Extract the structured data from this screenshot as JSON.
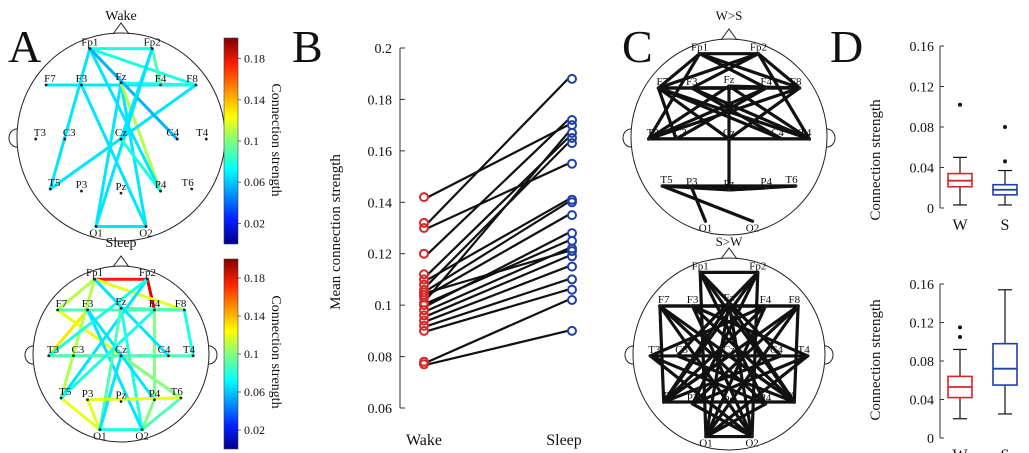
{
  "panels": {
    "a": "A",
    "b": "B",
    "c": "C",
    "d": "D"
  },
  "panelA": {
    "wake_title": "Wake",
    "sleep_title": "Sleep",
    "colorbar_label": "Connection strength",
    "colorbar_ticks": [
      "0.18",
      "0.14",
      "0.1",
      "0.06",
      "0.02"
    ],
    "colorbar_values": [
      0.18,
      0.14,
      0.1,
      0.06,
      0.02
    ],
    "colorbar_range": [
      0.0,
      0.2
    ],
    "electrodes": [
      {
        "id": "Fp1",
        "label": "Fp1"
      },
      {
        "id": "Fp2",
        "label": "Fp2"
      },
      {
        "id": "F7",
        "label": "F7"
      },
      {
        "id": "F3",
        "label": "F3"
      },
      {
        "id": "Fz",
        "label": "Fz"
      },
      {
        "id": "F4",
        "label": "F4"
      },
      {
        "id": "F8",
        "label": "F8"
      },
      {
        "id": "T3",
        "label": "T3"
      },
      {
        "id": "C3",
        "label": "C3"
      },
      {
        "id": "Cz",
        "label": "Cz"
      },
      {
        "id": "C4",
        "label": "C4"
      },
      {
        "id": "T4",
        "label": "T4"
      },
      {
        "id": "T5",
        "label": "T5"
      },
      {
        "id": "P3",
        "label": "P3"
      },
      {
        "id": "Pz",
        "label": "Pz"
      },
      {
        "id": "P4",
        "label": "P4"
      },
      {
        "id": "T6",
        "label": "T6"
      },
      {
        "id": "O1",
        "label": "O1"
      },
      {
        "id": "O2",
        "label": "O2"
      }
    ],
    "wake_edges": [
      [
        "Fp1",
        "Fp2",
        0.08
      ],
      [
        "Fp1",
        "F8",
        0.08
      ],
      [
        "Fp2",
        "F4",
        0.09
      ],
      [
        "F7",
        "F4",
        0.08
      ],
      [
        "F7",
        "F8",
        0.07
      ],
      [
        "Fz",
        "F8",
        0.08
      ],
      [
        "Fp1",
        "T5",
        0.07
      ],
      [
        "Fz",
        "O1",
        0.07
      ],
      [
        "Fz",
        "O2",
        0.07
      ],
      [
        "Fz",
        "P4",
        0.11
      ],
      [
        "Fp2",
        "O1",
        0.07
      ],
      [
        "Fp1",
        "P4",
        0.07
      ],
      [
        "F3",
        "O2",
        0.07
      ],
      [
        "Cz",
        "P4",
        0.08
      ],
      [
        "F8",
        "T5",
        0.07
      ],
      [
        "O1",
        "O2",
        0.07
      ],
      [
        "Fp1",
        "C4",
        0.06
      ],
      [
        "Fp2",
        "Cz",
        0.07
      ]
    ],
    "sleep_edges": [
      [
        "Fp1",
        "Fp2",
        0.17
      ],
      [
        "Fp2",
        "F4",
        0.18
      ],
      [
        "Fp1",
        "F8",
        0.12
      ],
      [
        "F7",
        "F8",
        0.1
      ],
      [
        "F7",
        "Fp1",
        0.11
      ],
      [
        "Fz",
        "F8",
        0.09
      ],
      [
        "F3",
        "T3",
        0.13
      ],
      [
        "T3",
        "C4",
        0.1
      ],
      [
        "F7",
        "T6",
        0.12
      ],
      [
        "Fp1",
        "T5",
        0.11
      ],
      [
        "T5",
        "O1",
        0.12
      ],
      [
        "P3",
        "O1",
        0.12
      ],
      [
        "O1",
        "O2",
        0.08
      ],
      [
        "O2",
        "P4",
        0.1
      ],
      [
        "T6",
        "O2",
        0.09
      ],
      [
        "F4",
        "P4",
        0.1
      ],
      [
        "Fp2",
        "T5",
        0.07
      ],
      [
        "Fz",
        "O2",
        0.08
      ],
      [
        "F3",
        "O2",
        0.07
      ],
      [
        "Fz",
        "O1",
        0.09
      ],
      [
        "Cz",
        "T6",
        0.1
      ],
      [
        "F8",
        "T4",
        0.08
      ],
      [
        "T3",
        "T4",
        0.09
      ],
      [
        "F7",
        "F4",
        0.09
      ],
      [
        "Fp2",
        "T3",
        0.08
      ],
      [
        "F3",
        "P4",
        0.07
      ],
      [
        "Fp1",
        "C4",
        0.07
      ],
      [
        "F4",
        "T5",
        0.08
      ],
      [
        "Cz",
        "O1",
        0.07
      ],
      [
        "P3",
        "T6",
        0.12
      ]
    ]
  },
  "chart_data": {
    "type": "line",
    "ylabel": "Mean connection strength",
    "categories": [
      "Wake",
      "Sleep"
    ],
    "ylim": [
      0.06,
      0.2
    ],
    "yticks": [
      "0.06",
      "0.08",
      "0.1",
      "0.12",
      "0.14",
      "0.16",
      "0.18",
      "0.2"
    ],
    "ytick_values": [
      0.06,
      0.08,
      0.1,
      0.12,
      0.14,
      0.16,
      0.18,
      0.2
    ],
    "wake_color": "#d62728",
    "sleep_color": "#1f3fa8",
    "pairs": [
      [
        0.142,
        0.17
      ],
      [
        0.132,
        0.188
      ],
      [
        0.13,
        0.155
      ],
      [
        0.12,
        0.172
      ],
      [
        0.112,
        0.165
      ],
      [
        0.11,
        0.141
      ],
      [
        0.108,
        0.163
      ],
      [
        0.106,
        0.14
      ],
      [
        0.104,
        0.135
      ],
      [
        0.103,
        0.167
      ],
      [
        0.101,
        0.125
      ],
      [
        0.098,
        0.122
      ],
      [
        0.096,
        0.119
      ],
      [
        0.094,
        0.115
      ],
      [
        0.092,
        0.11
      ],
      [
        0.09,
        0.106
      ],
      [
        0.078,
        0.102
      ],
      [
        0.077,
        0.09
      ],
      [
        0.1,
        0.128
      ],
      [
        0.105,
        0.121
      ]
    ]
  },
  "panelC": {
    "top_title": "W>S",
    "bottom_title": "S>W",
    "top_edges": [
      [
        "F7",
        "F8"
      ],
      [
        "F7",
        "F4"
      ],
      [
        "F3",
        "F8"
      ],
      [
        "F3",
        "F4"
      ],
      [
        "Fz",
        "F8"
      ],
      [
        "Fp1",
        "F4"
      ],
      [
        "Fp1",
        "F8"
      ],
      [
        "Fp2",
        "F7"
      ],
      [
        "Fp2",
        "F3"
      ],
      [
        "Fp1",
        "F7"
      ],
      [
        "Fp2",
        "F8"
      ],
      [
        "F7",
        "T4"
      ],
      [
        "T3",
        "F8"
      ],
      [
        "T3",
        "T4"
      ],
      [
        "C3",
        "T4"
      ],
      [
        "T3",
        "C4"
      ],
      [
        "F3",
        "T4"
      ],
      [
        "T3",
        "F4"
      ],
      [
        "F7",
        "C4"
      ],
      [
        "Fz",
        "T4"
      ],
      [
        "T3",
        "Fz"
      ],
      [
        "T5",
        "T6"
      ],
      [
        "T5",
        "P4"
      ],
      [
        "P3",
        "T6"
      ],
      [
        "T5",
        "O2"
      ],
      [
        "P3",
        "O1"
      ],
      [
        "Pz",
        "T6"
      ],
      [
        "Fp1",
        "T3"
      ],
      [
        "Fp2",
        "T4"
      ],
      [
        "Fz",
        "Pz"
      ],
      [
        "F7",
        "Cz"
      ],
      [
        "Cz",
        "F8"
      ],
      [
        "Fp1",
        "Fp2"
      ],
      [
        "F3",
        "C4"
      ],
      [
        "C3",
        "F4"
      ],
      [
        "T3",
        "Cz"
      ],
      [
        "F7",
        "C3"
      ],
      [
        "Cz",
        "T4"
      ],
      [
        "T5",
        "Pz"
      ],
      [
        "Pz",
        "P4"
      ]
    ],
    "bottom_edges": [
      [
        "Fp1",
        "Fp2"
      ],
      [
        "Fp1",
        "T6"
      ],
      [
        "Fp2",
        "T5"
      ],
      [
        "F7",
        "T6"
      ],
      [
        "F8",
        "T5"
      ],
      [
        "F7",
        "O2"
      ],
      [
        "F8",
        "O1"
      ],
      [
        "F3",
        "O2"
      ],
      [
        "F4",
        "O1"
      ],
      [
        "T3",
        "T4"
      ],
      [
        "T3",
        "P4"
      ],
      [
        "T4",
        "P3"
      ],
      [
        "Fp1",
        "O1"
      ],
      [
        "Fp2",
        "O2"
      ],
      [
        "F7",
        "T5"
      ],
      [
        "F8",
        "T6"
      ],
      [
        "Fz",
        "O1"
      ],
      [
        "Fz",
        "O2"
      ],
      [
        "F3",
        "T6"
      ],
      [
        "F4",
        "T5"
      ],
      [
        "T3",
        "O2"
      ],
      [
        "T4",
        "O1"
      ],
      [
        "C3",
        "T6"
      ],
      [
        "C4",
        "T5"
      ],
      [
        "Fp1",
        "P4"
      ],
      [
        "Fp2",
        "P3"
      ],
      [
        "F7",
        "F4"
      ],
      [
        "F3",
        "F8"
      ],
      [
        "T3",
        "F4"
      ],
      [
        "T4",
        "F3"
      ],
      [
        "Cz",
        "T5"
      ],
      [
        "Cz",
        "T6"
      ],
      [
        "P3",
        "O2"
      ],
      [
        "P4",
        "O1"
      ],
      [
        "Fp1",
        "C4"
      ],
      [
        "Fp2",
        "C3"
      ],
      [
        "F7",
        "P4"
      ],
      [
        "F8",
        "P3"
      ],
      [
        "T5",
        "T6"
      ],
      [
        "C3",
        "C4"
      ],
      [
        "Fz",
        "T5"
      ],
      [
        "Fz",
        "T6"
      ],
      [
        "F7",
        "F8"
      ],
      [
        "O1",
        "O2"
      ]
    ]
  },
  "panelD": {
    "ylabel": "Connection strength",
    "categories": [
      "W",
      "S"
    ],
    "top": {
      "ylim": [
        0,
        0.16
      ],
      "yticks": [
        "0",
        "0.04",
        "0.08",
        "0.12",
        "0.16"
      ],
      "ytick_values": [
        0,
        0.04,
        0.08,
        0.12,
        0.16
      ],
      "boxes": [
        {
          "name": "W",
          "color": "#d62728",
          "min": 0.003,
          "q1": 0.021,
          "median": 0.027,
          "q3": 0.034,
          "max": 0.05,
          "outliers": [
            0.102
          ]
        },
        {
          "name": "S",
          "color": "#1f3fa8",
          "min": 0.003,
          "q1": 0.013,
          "median": 0.018,
          "q3": 0.023,
          "max": 0.037,
          "outliers": [
            0.046,
            0.08
          ]
        }
      ]
    },
    "bottom": {
      "ylim": [
        0,
        0.16
      ],
      "yticks": [
        "0",
        "0.04",
        "0.08",
        "0.12",
        "0.16"
      ],
      "ytick_values": [
        0,
        0.04,
        0.08,
        0.12,
        0.16
      ],
      "boxes": [
        {
          "name": "W",
          "color": "#d62728",
          "min": 0.02,
          "q1": 0.042,
          "median": 0.053,
          "q3": 0.064,
          "max": 0.092,
          "outliers": [
            0.105,
            0.115
          ]
        },
        {
          "name": "S",
          "color": "#1f3fa8",
          "min": 0.025,
          "q1": 0.055,
          "median": 0.072,
          "q3": 0.098,
          "max": 0.154,
          "outliers": []
        }
      ]
    }
  }
}
